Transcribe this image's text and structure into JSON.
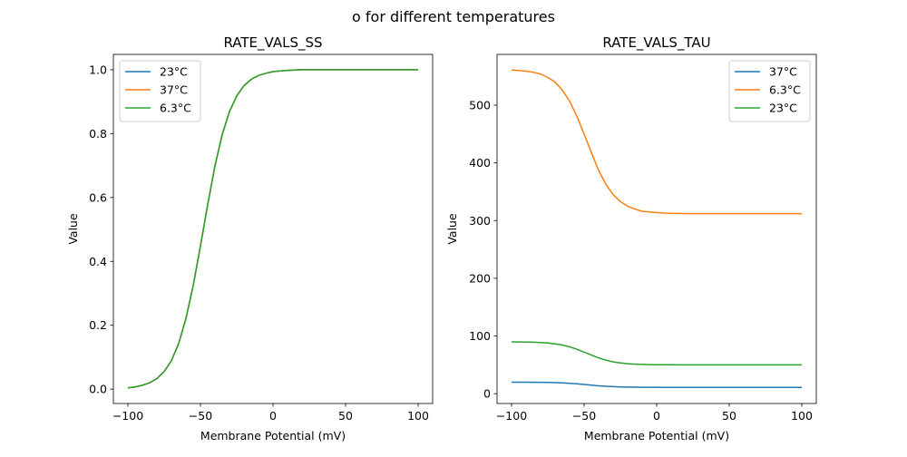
{
  "suptitle": "o for different temperatures",
  "chart_data": [
    {
      "type": "line",
      "title": "RATE_VALS_SS",
      "xlabel": "Membrane Potential (mV)",
      "ylabel": "Value",
      "xlim": [
        -110,
        110
      ],
      "ylim": [
        -0.045,
        1.048
      ],
      "xticks": [
        -100,
        -50,
        0,
        50,
        100
      ],
      "yticks": [
        0.0,
        0.2,
        0.4,
        0.6,
        0.8,
        1.0
      ],
      "ytick_labels": [
        "0.0",
        "0.2",
        "0.4",
        "0.6",
        "0.8",
        "1.0"
      ],
      "legend_position": "upper-left",
      "x": [
        -100,
        -95,
        -90,
        -85,
        -80,
        -75,
        -70,
        -65,
        -60,
        -55,
        -50,
        -45,
        -40,
        -35,
        -30,
        -25,
        -20,
        -15,
        -10,
        -5,
        0,
        5,
        10,
        15,
        20,
        25,
        30,
        35,
        40,
        45,
        50,
        55,
        60,
        65,
        70,
        75,
        80,
        85,
        90,
        95,
        100
      ],
      "series": [
        {
          "name": "23°C",
          "color": "#1f77b4",
          "values": [
            0.004,
            0.007,
            0.012,
            0.02,
            0.033,
            0.055,
            0.089,
            0.143,
            0.221,
            0.324,
            0.448,
            0.578,
            0.699,
            0.797,
            0.869,
            0.918,
            0.95,
            0.97,
            0.982,
            0.989,
            0.994,
            0.996,
            0.998,
            0.999,
            1,
            1,
            1,
            1,
            1,
            1,
            1,
            1,
            1,
            1,
            1,
            1,
            1,
            1,
            1,
            1,
            1
          ]
        },
        {
          "name": "37°C",
          "color": "#ff7f0e",
          "values": [
            0.004,
            0.007,
            0.012,
            0.02,
            0.033,
            0.055,
            0.089,
            0.143,
            0.221,
            0.324,
            0.448,
            0.578,
            0.699,
            0.797,
            0.869,
            0.918,
            0.95,
            0.97,
            0.982,
            0.989,
            0.994,
            0.996,
            0.998,
            0.999,
            1,
            1,
            1,
            1,
            1,
            1,
            1,
            1,
            1,
            1,
            1,
            1,
            1,
            1,
            1,
            1,
            1
          ]
        },
        {
          "name": "6.3°C",
          "color": "#2ca02c",
          "values": [
            0.004,
            0.007,
            0.012,
            0.02,
            0.033,
            0.055,
            0.089,
            0.143,
            0.221,
            0.324,
            0.448,
            0.578,
            0.699,
            0.797,
            0.869,
            0.918,
            0.95,
            0.97,
            0.982,
            0.989,
            0.994,
            0.996,
            0.998,
            0.999,
            1,
            1,
            1,
            1,
            1,
            1,
            1,
            1,
            1,
            1,
            1,
            1,
            1,
            1,
            1,
            1,
            1
          ]
        }
      ]
    },
    {
      "type": "line",
      "title": "RATE_VALS_TAU",
      "xlabel": "Membrane Potential (mV)",
      "ylabel": "Value",
      "xlim": [
        -110,
        110
      ],
      "ylim": [
        -17,
        588
      ],
      "xticks": [
        -100,
        -50,
        0,
        50,
        100
      ],
      "yticks": [
        0,
        100,
        200,
        300,
        400,
        500
      ],
      "ytick_labels": [
        "0",
        "100",
        "200",
        "300",
        "400",
        "500"
      ],
      "legend_position": "upper-right",
      "x": [
        -100,
        -95,
        -90,
        -85,
        -80,
        -75,
        -70,
        -65,
        -60,
        -55,
        -50,
        -45,
        -40,
        -35,
        -30,
        -25,
        -20,
        -15,
        -10,
        -5,
        0,
        5,
        10,
        15,
        20,
        25,
        30,
        35,
        40,
        45,
        50,
        55,
        60,
        65,
        70,
        75,
        80,
        85,
        90,
        95,
        100
      ],
      "series": [
        {
          "name": "37°C",
          "color": "#1f77b4",
          "values": [
            20.0,
            19.9,
            19.9,
            19.8,
            19.7,
            19.5,
            19.2,
            18.7,
            18.0,
            17.1,
            16.0,
            14.8,
            13.7,
            12.8,
            12.2,
            11.7,
            11.5,
            11.3,
            11.2,
            11.1,
            11.05,
            11.04,
            11.02,
            11.01,
            11,
            11,
            11,
            11,
            11,
            11,
            11,
            11,
            11,
            11,
            11,
            11,
            11,
            11,
            11,
            11,
            11
          ]
        },
        {
          "name": "6.3°C",
          "color": "#ff7f0e",
          "values": [
            561,
            560,
            559,
            557,
            554,
            548,
            540,
            526,
            507,
            481,
            450,
            418,
            387,
            363,
            345,
            333,
            325,
            320,
            316,
            315,
            314,
            313,
            312.5,
            312.3,
            312,
            312,
            312,
            312,
            312,
            312,
            312,
            312,
            312,
            312,
            312,
            312,
            312,
            312,
            312,
            312,
            312
          ]
        },
        {
          "name": "23°C",
          "color": "#2ca02c",
          "values": [
            89.8,
            89.7,
            89.5,
            89.2,
            88.7,
            87.8,
            86.4,
            84.3,
            81.2,
            77.0,
            72.1,
            66.9,
            62.0,
            58.1,
            55.2,
            53.3,
            52.0,
            51.2,
            50.7,
            50.4,
            50.2,
            50.2,
            50.1,
            50,
            50,
            50,
            50,
            50,
            50,
            50,
            50,
            50,
            50,
            50,
            50,
            50,
            50,
            50,
            50,
            50,
            50
          ]
        }
      ]
    }
  ]
}
